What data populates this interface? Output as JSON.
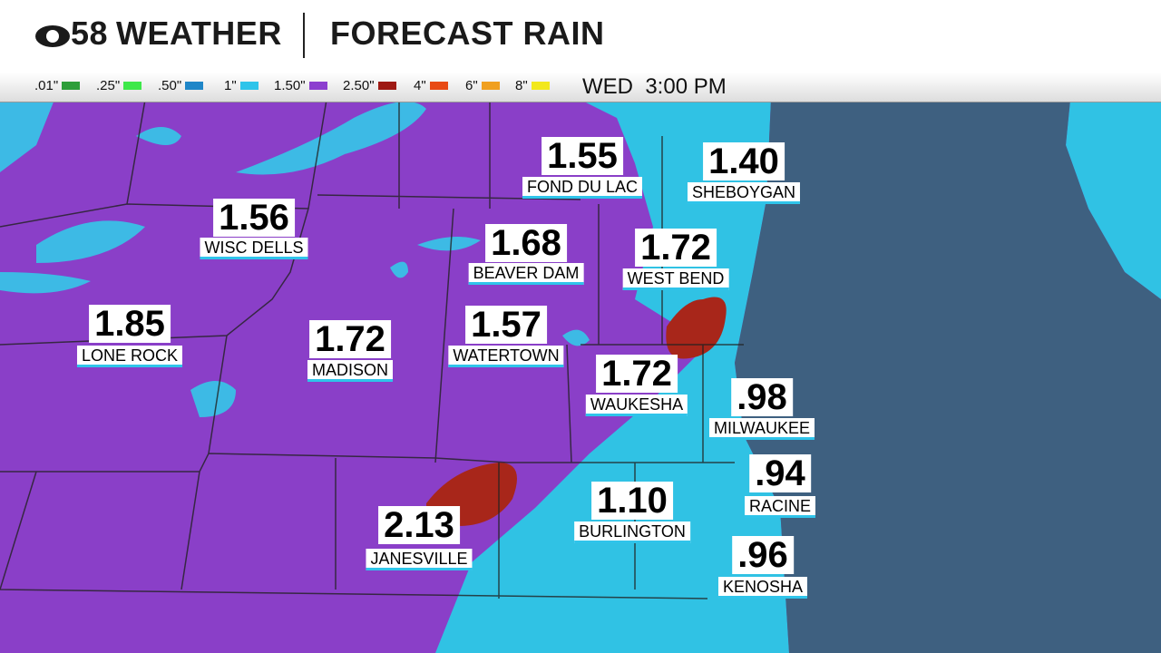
{
  "header": {
    "logo": "58",
    "brand": "WEATHER",
    "title": "FORECAST RAIN"
  },
  "legend": [
    {
      "label": ".01\"",
      "color": "#2e9e3a"
    },
    {
      "label": ".25\"",
      "color": "#3ee84a"
    },
    {
      "label": ".50\"",
      "color": "#1f86c8"
    },
    {
      "label": "1\"",
      "color": "#2fc4ea"
    },
    {
      "label": "1.50\"",
      "color": "#8c3fcf"
    },
    {
      "label": "2.50\"",
      "color": "#9e1a14"
    },
    {
      "label": "4\"",
      "color": "#e84a14"
    },
    {
      "label": "6\"",
      "color": "#f0a020"
    },
    {
      "label": "8\"",
      "color": "#f2e81c"
    }
  ],
  "time": "WED  3:00 PM",
  "cities": [
    {
      "value": "1.55",
      "name": "FOND DU LAC"
    },
    {
      "value": "1.40",
      "name": "SHEBOYGAN"
    },
    {
      "value": "1.56",
      "name": "WISC DELLS"
    },
    {
      "value": "1.68",
      "name": "BEAVER DAM"
    },
    {
      "value": "1.72",
      "name": "WEST BEND"
    },
    {
      "value": "1.85",
      "name": "LONE ROCK"
    },
    {
      "value": "1.72",
      "name": "MADISON"
    },
    {
      "value": "1.57",
      "name": "WATERTOWN"
    },
    {
      "value": "1.72",
      "name": "WAUKESHA"
    },
    {
      "value": ".98",
      "name": "MILWAUKEE"
    },
    {
      "value": ".94",
      "name": "RACINE"
    },
    {
      "value": "2.13",
      "name": "JANESVILLE"
    },
    {
      "value": "1.10",
      "name": "BURLINGTON"
    },
    {
      "value": ".96",
      "name": "KENOSHA"
    }
  ]
}
